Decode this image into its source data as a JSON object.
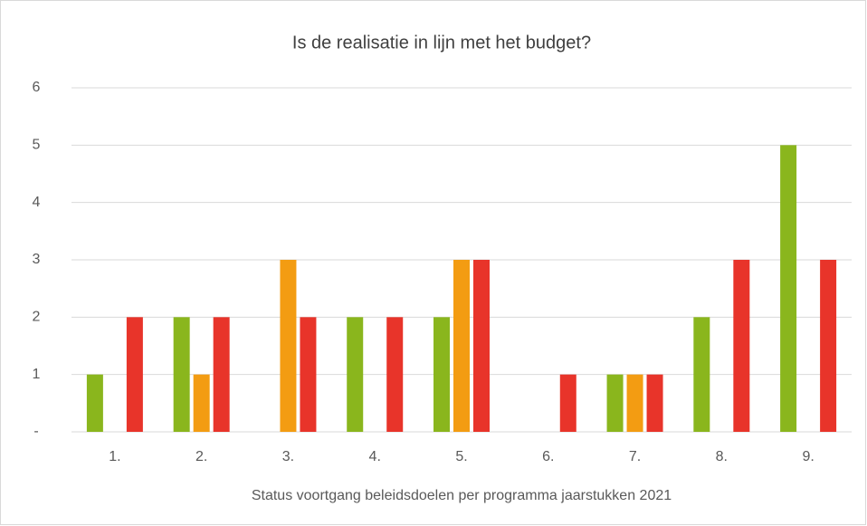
{
  "chart_data": {
    "type": "bar",
    "title": "Is de realisatie in lijn met het budget?",
    "x_label": "Status voortgang beleidsdoelen per programma jaarstukken 2021",
    "categories": [
      "1.",
      "2.",
      "3.",
      "4.",
      "5.",
      "6.",
      "7.",
      "8.",
      "9."
    ],
    "series": [
      {
        "color": "#8ab61d",
        "values": [
          1,
          2,
          0,
          2,
          2,
          0,
          1,
          2,
          5
        ]
      },
      {
        "color": "#f39c12",
        "values": [
          0,
          1,
          3,
          0,
          3,
          0,
          1,
          0,
          0
        ]
      },
      {
        "color": "#e8342a",
        "values": [
          2,
          2,
          2,
          2,
          3,
          1,
          1,
          3,
          3
        ]
      }
    ],
    "ylim": [
      0,
      6
    ],
    "yticks": [
      {
        "value": 0,
        "label": "-"
      },
      1,
      2,
      3,
      4,
      5,
      6
    ],
    "grid": true
  }
}
